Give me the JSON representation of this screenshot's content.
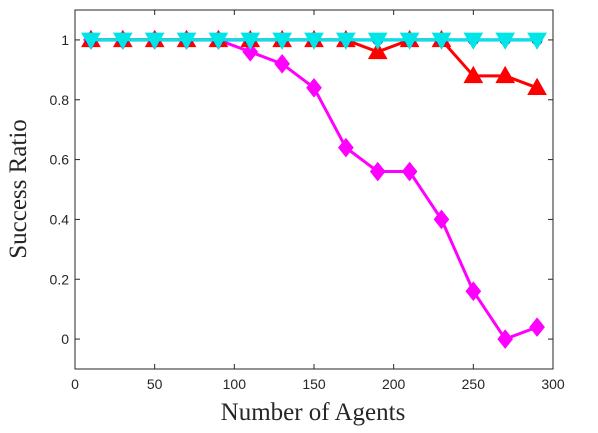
{
  "chart_data": {
    "type": "line",
    "title": "",
    "xlabel": "Number of Agents",
    "ylabel": "Success Ratio",
    "xlim": [
      0,
      300
    ],
    "ylim": [
      -0.1,
      1.1
    ],
    "xticks": [
      0,
      50,
      100,
      150,
      200,
      250,
      300
    ],
    "yticks": [
      0,
      0.2,
      0.4,
      0.6,
      0.8,
      1
    ],
    "ytick_labels": [
      "0",
      "0.2",
      "0.4",
      "0.6",
      "0.8",
      "1"
    ],
    "grid": false,
    "x": [
      10,
      30,
      50,
      70,
      90,
      110,
      130,
      150,
      170,
      190,
      210,
      230,
      250,
      270,
      290
    ],
    "series": [
      {
        "color": "#ff00ff",
        "marker": "diamond",
        "values": [
          1,
          1,
          1,
          1,
          1,
          0.96,
          0.92,
          0.84,
          0.64,
          0.56,
          0.56,
          0.4,
          0.16,
          0.0,
          0.04
        ]
      },
      {
        "color": "#ff0000",
        "marker": "triangle-up",
        "values": [
          1,
          1,
          1,
          1,
          1,
          1,
          1,
          1,
          1,
          0.96,
          1,
          1,
          0.88,
          0.88,
          0.84
        ]
      },
      {
        "color": "#0000cc",
        "marker": "circle",
        "values": [
          1,
          1,
          1,
          1,
          1,
          1,
          1,
          1,
          1,
          1,
          1,
          1,
          1,
          1,
          1
        ]
      },
      {
        "color": "#00e6e6",
        "marker": "triangle-down",
        "values": [
          1,
          1,
          1,
          1,
          1,
          1,
          1,
          1,
          1,
          1,
          1,
          1,
          1,
          1,
          1
        ]
      }
    ]
  }
}
